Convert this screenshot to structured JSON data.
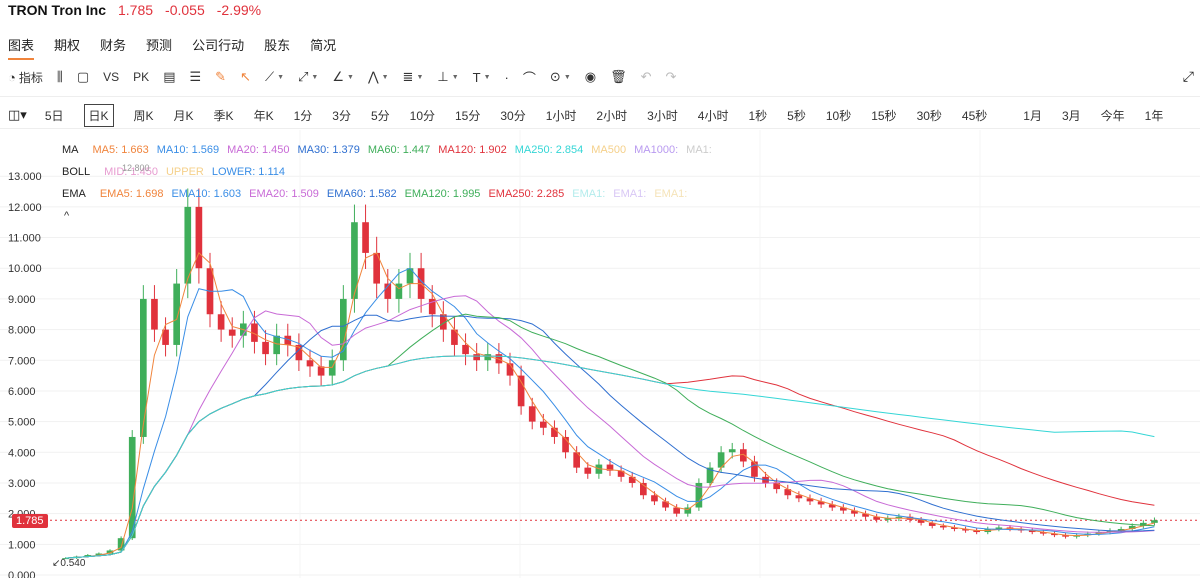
{
  "header": {
    "ticker": "TRON Tron Inc",
    "price": "1.785",
    "change": "-0.055",
    "pct": "-2.99%"
  },
  "tabs": [
    "图表",
    "期权",
    "财务",
    "预测",
    "公司行动",
    "股东",
    "简况"
  ],
  "toolbar": {
    "indicator_label": "指标",
    "vs_label": "VS",
    "pk_label": "PK"
  },
  "periods": [
    "5日",
    "日K",
    "周K",
    "月K",
    "季K",
    "年K",
    "1分",
    "3分",
    "5分",
    "10分",
    "15分",
    "30分",
    "1小时",
    "2小时",
    "3小时",
    "4小时",
    "1秒",
    "5秒",
    "10秒",
    "15秒",
    "30秒",
    "45秒",
    "1月",
    "3月",
    "今年",
    "1年"
  ],
  "active_period": "日K",
  "legends": {
    "ma": {
      "name": "MA",
      "items": [
        {
          "text": "MA5: 1.663",
          "color": "#f0843c"
        },
        {
          "text": "MA10: 1.569",
          "color": "#3a8ee6"
        },
        {
          "text": "MA20: 1.450",
          "color": "#c86ad6"
        },
        {
          "text": "MA30: 1.379",
          "color": "#2f6fd0"
        },
        {
          "text": "MA60: 1.447",
          "color": "#3fae5a"
        },
        {
          "text": "MA120: 1.902",
          "color": "#e0323c"
        },
        {
          "text": "MA250: 2.854",
          "color": "#35d6d6"
        },
        {
          "text": "MA500",
          "color": "#f5d08a"
        },
        {
          "text": "MA1000:",
          "color": "#b99af0"
        },
        {
          "text": "MA1:",
          "color": "#cccccc"
        }
      ]
    },
    "boll": {
      "name": "BOLL",
      "items": [
        {
          "text": "MID: 1.450",
          "color": "#e79bd0"
        },
        {
          "text": "UPPER",
          "color": "#f5d08a"
        },
        {
          "text": "LOWER: 1.114",
          "color": "#3a8ee6"
        }
      ]
    },
    "ema": {
      "name": "EMA",
      "items": [
        {
          "text": "EMA5: 1.698",
          "color": "#f0843c"
        },
        {
          "text": "EMA10: 1.603",
          "color": "#3a8ee6"
        },
        {
          "text": "EMA20: 1.509",
          "color": "#c86ad6"
        },
        {
          "text": "EMA60: 1.582",
          "color": "#2f6fd0"
        },
        {
          "text": "EMA120: 1.995",
          "color": "#3fae5a"
        },
        {
          "text": "EMA250: 2.285",
          "color": "#e0323c"
        },
        {
          "text": "EMA1:",
          "color": "#b3ecec"
        },
        {
          "text": "EMA1:",
          "color": "#d8c7f5"
        },
        {
          "text": "EMA1:",
          "color": "#f5e3b8"
        }
      ]
    }
  },
  "current_price_tag": "1.785",
  "low_label": "0.540",
  "high_label": "12.800",
  "colors": {
    "up": "#3fae5a",
    "down": "#e0323c",
    "accent": "#f0843c"
  },
  "chart_data": {
    "type": "candlestick",
    "yticks": [
      "13.000",
      "12.000",
      "11.000",
      "10.000",
      "9.000",
      "8.000",
      "7.000",
      "6.000",
      "5.000",
      "4.000",
      "3.000",
      "2.000",
      "1.000",
      "0.000"
    ],
    "ylim": [
      0,
      13.3
    ],
    "close_series": [
      0.55,
      0.6,
      0.65,
      0.7,
      0.8,
      1.2,
      4.5,
      9.0,
      8.0,
      7.5,
      9.5,
      12.0,
      10.0,
      8.5,
      8.0,
      7.8,
      8.2,
      7.6,
      7.2,
      7.8,
      7.5,
      7.0,
      6.8,
      6.5,
      7.0,
      9.0,
      11.5,
      10.5,
      9.5,
      9.0,
      9.5,
      10.0,
      9.0,
      8.5,
      8.0,
      7.5,
      7.2,
      7.0,
      7.2,
      6.9,
      6.5,
      5.5,
      5.0,
      4.8,
      4.5,
      4.0,
      3.5,
      3.3,
      3.6,
      3.4,
      3.2,
      3.0,
      2.6,
      2.4,
      2.2,
      2.0,
      2.2,
      3.0,
      3.5,
      4.0,
      4.1,
      3.7,
      3.2,
      3.0,
      2.8,
      2.6,
      2.5,
      2.4,
      2.3,
      2.2,
      2.1,
      2.0,
      1.9,
      1.8,
      1.85,
      1.9,
      1.8,
      1.7,
      1.6,
      1.55,
      1.5,
      1.45,
      1.4,
      1.5,
      1.55,
      1.5,
      1.45,
      1.4,
      1.35,
      1.3,
      1.25,
      1.3,
      1.35,
      1.4,
      1.45,
      1.5,
      1.6,
      1.7,
      1.785
    ]
  }
}
